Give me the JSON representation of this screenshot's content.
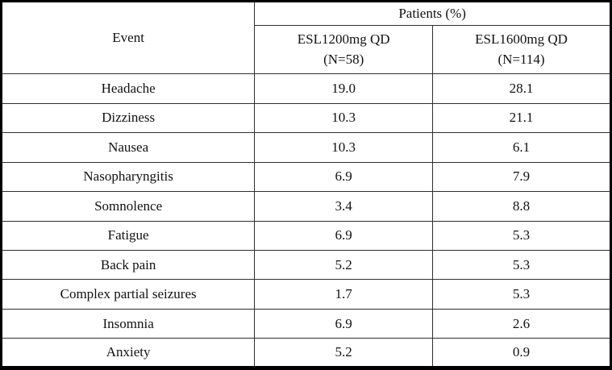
{
  "chart_data": {
    "type": "table",
    "group_header": "Patients (%)",
    "columns": [
      "Event",
      "ESL1200mg QD (N=58)",
      "ESL1600mg QD (N=114)"
    ],
    "rows": [
      [
        "Headache",
        19.0,
        28.1
      ],
      [
        "Dizziness",
        10.3,
        21.1
      ],
      [
        "Nausea",
        10.3,
        6.1
      ],
      [
        "Nasopharyngitis",
        6.9,
        7.9
      ],
      [
        "Somnolence",
        3.4,
        8.8
      ],
      [
        "Fatigue",
        6.9,
        5.3
      ],
      [
        "Back pain",
        5.2,
        5.3
      ],
      [
        "Complex partial seizures",
        1.7,
        5.3
      ],
      [
        "Insomnia",
        6.9,
        2.6
      ],
      [
        "Anxiety",
        5.2,
        0.9
      ]
    ]
  },
  "table": {
    "event_header": "Event",
    "patients_header": "Patients (%)",
    "dose_columns": [
      {
        "label": "ESL1200mg QD",
        "n": "(N=58)"
      },
      {
        "label": "ESL1600mg QD",
        "n": "(N=114)"
      }
    ],
    "rows": [
      {
        "event": "Headache",
        "esl1200": "19.0",
        "esl1600": "28.1"
      },
      {
        "event": "Dizziness",
        "esl1200": "10.3",
        "esl1600": "21.1"
      },
      {
        "event": "Nausea",
        "esl1200": "10.3",
        "esl1600": "6.1"
      },
      {
        "event": "Nasopharyngitis",
        "esl1200": "6.9",
        "esl1600": "7.9"
      },
      {
        "event": "Somnolence",
        "esl1200": "3.4",
        "esl1600": "8.8"
      },
      {
        "event": "Fatigue",
        "esl1200": "6.9",
        "esl1600": "5.3"
      },
      {
        "event": "Back pain",
        "esl1200": "5.2",
        "esl1600": "5.3"
      },
      {
        "event": "Complex partial seizures",
        "esl1200": "1.7",
        "esl1600": "5.3"
      },
      {
        "event": "Insomnia",
        "esl1200": "6.9",
        "esl1600": "2.6"
      },
      {
        "event": "Anxiety",
        "esl1200": "5.2",
        "esl1600": "0.9"
      }
    ]
  }
}
